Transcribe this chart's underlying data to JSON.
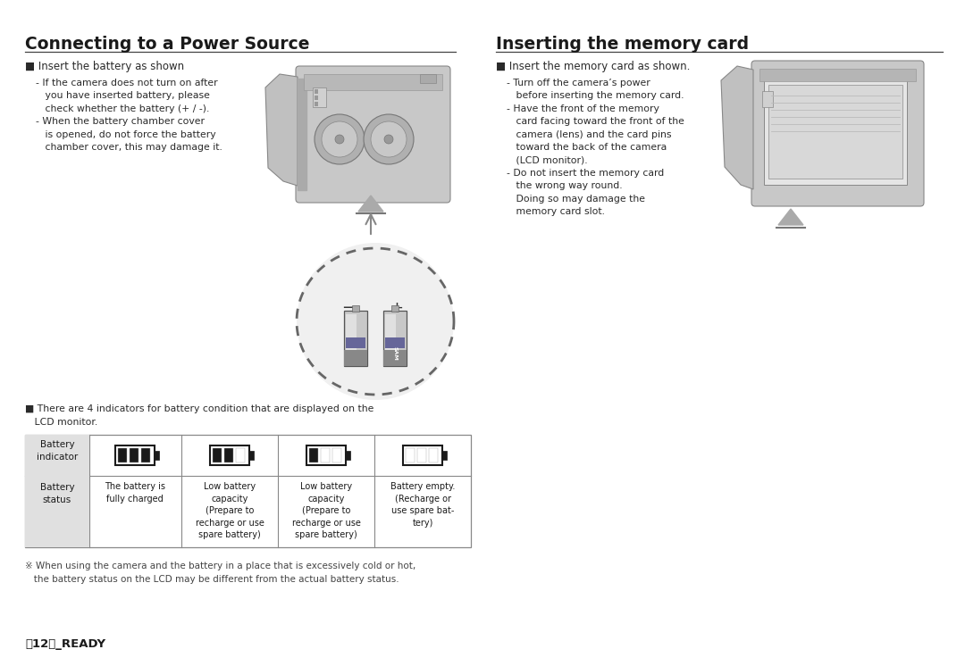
{
  "bg_color": "#ffffff",
  "left_title": "Connecting to a Power Source",
  "right_title": "Inserting the memory card",
  "title_fontsize": 13.5,
  "title_color": "#1a1a1a",
  "body_color": "#2a2a2a",
  "body_fontsize": 8.5,
  "small_fontsize": 7.8,
  "left_bullet": "Insert the battery as shown",
  "left_body": "- If the camera does not turn on after\n   you have inserted battery, please\n   check whether the battery (+ / -).\n- When the battery chamber cover\n   is opened, do not force the battery\n   chamber cover, this may damage it.",
  "right_bullet": "Insert the memory card as shown.",
  "right_body": "- Turn off the camera’s power\n   before inserting the memory card.\n- Have the front of the memory\n   card facing toward the front of the\n   camera (lens) and the card pins\n   toward the back of the camera\n   (LCD monitor).\n- Do not insert the memory card\n   the wrong way round.\n   Doing so may damage the\n   memory card slot.",
  "bottom_note1": "※ When using the camera and the battery in a place that is excessively cold or hot,",
  "bottom_note2": "   the battery status on the LCD may be different from the actual battery status.",
  "footer": "〈12〉_READY",
  "table_header_left": "Battery\nindicator",
  "table_row2_left": "Battery\nstatus",
  "table_row2_col1": "The battery is\nfully charged",
  "table_row2_col2": "Low battery\ncapacity\n(Prepare to\nrecharge or use\nspare battery)",
  "table_row2_col3": "Low battery\ncapacity\n(Prepare to\nrecharge or use\nspare battery)",
  "table_row2_col4": "Battery empty.\n(Recharge or\nuse spare bat-\ntery)",
  "indicator_note_line1": "■ There are 4 indicators for battery condition that are displayed on the",
  "indicator_note_line2": "   LCD monitor."
}
